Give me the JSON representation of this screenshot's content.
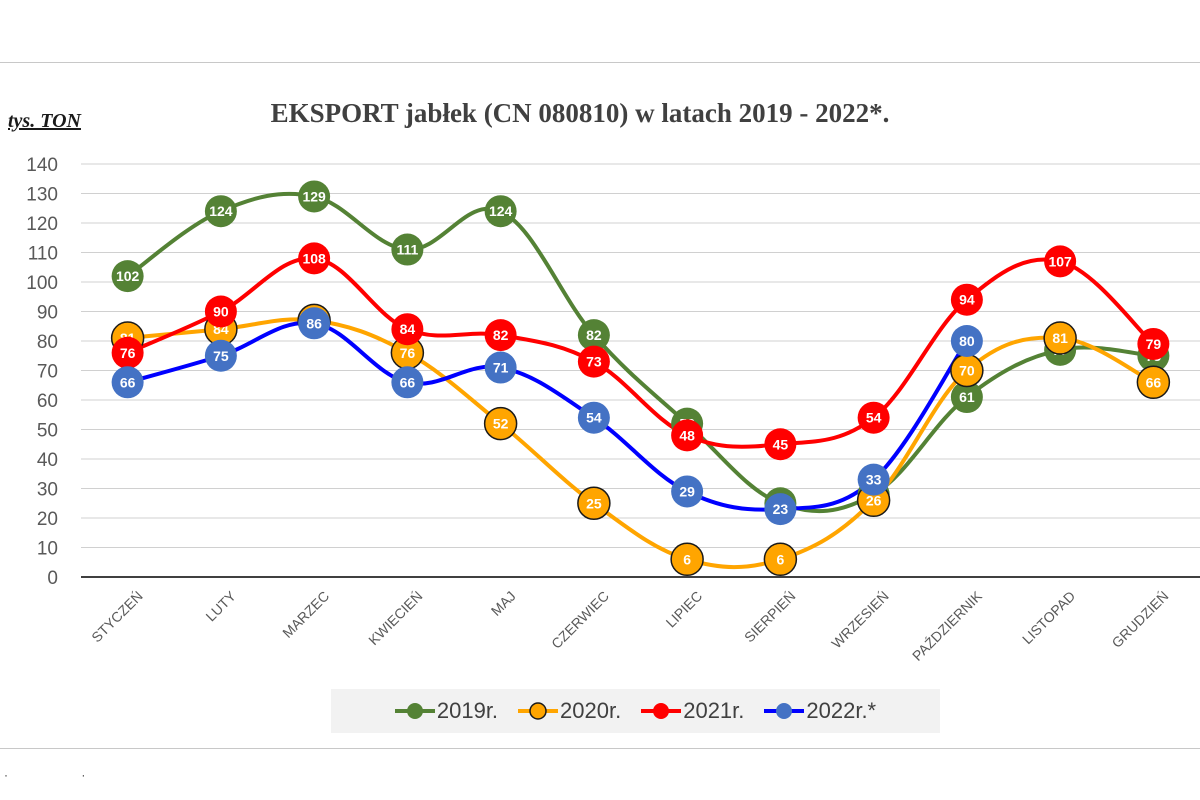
{
  "title": "EKSPORT jabłek (CN 080810) w latach 2019 - 2022*.",
  "unit_label": "tys. TON",
  "chart_data": {
    "type": "line",
    "title": "EKSPORT jabłek (CN 080810) w latach 2019 - 2022*.",
    "ylabel": "tys. TON",
    "xlabel": "",
    "ylim": [
      0,
      140
    ],
    "y_ticks": [
      0,
      10,
      20,
      30,
      40,
      50,
      60,
      70,
      80,
      90,
      100,
      110,
      120,
      130,
      140
    ],
    "grid": true,
    "legend_position": "bottom",
    "categories": [
      "STYCZEŃ",
      "LUTY",
      "MARZEC",
      "KWIECIEŃ",
      "MAJ",
      "CZERWIEC",
      "LIPIEC",
      "SIERPIEŃ",
      "WRZESIEŃ",
      "PAŹDZIERNIK",
      "LISTOPAD",
      "GRUDZIEŃ"
    ],
    "series": [
      {
        "name": "2019r.",
        "color": "#548235",
        "values": [
          102,
          124,
          129,
          111,
          124,
          82,
          52,
          25,
          28,
          61,
          77,
          75
        ]
      },
      {
        "name": "2020r.",
        "color": "#ffa500",
        "marker_border": "#1a1a1a",
        "values": [
          81,
          84,
          87,
          76,
          52,
          25,
          6,
          6,
          26,
          70,
          81,
          66
        ]
      },
      {
        "name": "2021r.",
        "color": "#ff0000",
        "values": [
          76,
          90,
          108,
          84,
          82,
          73,
          48,
          45,
          54,
          94,
          107,
          79
        ]
      },
      {
        "name": "2022r.*",
        "color": "#4472c4",
        "line_color": "#0000ff",
        "values": [
          66,
          75,
          86,
          66,
          71,
          54,
          29,
          23,
          33,
          80,
          null,
          null
        ]
      }
    ]
  }
}
